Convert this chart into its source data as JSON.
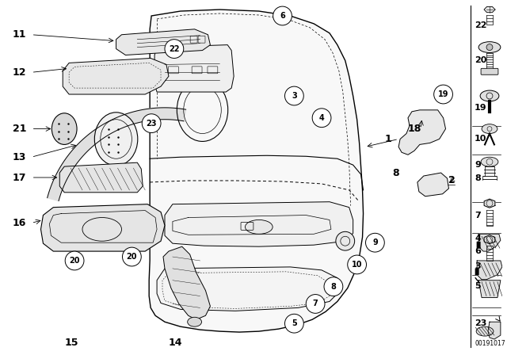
{
  "background_color": "#ffffff",
  "fig_width": 6.4,
  "fig_height": 4.48,
  "dpi": 100,
  "watermark": "00191017"
}
